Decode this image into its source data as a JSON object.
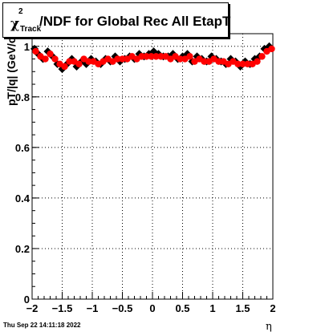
{
  "title": {
    "symbol": "χ",
    "superscript": "2",
    "subscript": "Track",
    "text": "/NDF for Global Rec All EtapT"
  },
  "timestamp": "Thu Sep 22 14:11:18 2022",
  "colors": {
    "series_black": "#000000",
    "series_red": "#ff0000",
    "grid": "#000000",
    "background": "#ffffff"
  },
  "chart_data": {
    "type": "scatter",
    "title": "χ²_Track/NDF for Global Rec All EtapT",
    "xlabel": "η",
    "ylabel": "pT/|q| (GeV/c",
    "xlim": [
      -2,
      2
    ],
    "ylim": [
      0,
      1.05
    ],
    "xticks": [
      "−2",
      "−1.5",
      "−1",
      "−0.5",
      "0",
      "0.5",
      "1",
      "1.5",
      "2"
    ],
    "yticks": [
      "0",
      "0.2",
      "0.4",
      "0.6",
      "0.8",
      "1"
    ],
    "xtick_values": [
      -2,
      -1.5,
      -1,
      -0.5,
      0,
      0.5,
      1,
      1.5,
      2
    ],
    "ytick_values": [
      0,
      0.2,
      0.4,
      0.6,
      0.8,
      1
    ],
    "grid": true,
    "series": [
      {
        "x": [
          -1.96,
          -1.9,
          -1.82,
          -1.74,
          -1.66,
          -1.58,
          -1.5,
          -1.42,
          -1.34,
          -1.26,
          -1.18,
          -1.1,
          -1.02,
          -0.94,
          -0.86,
          -0.78,
          -0.7,
          -0.62,
          -0.54,
          -0.46,
          -0.38,
          -0.3,
          -0.22,
          -0.14,
          -0.06,
          0.02,
          0.1,
          0.18,
          0.26,
          0.34,
          0.42,
          0.5,
          0.58,
          0.66,
          0.74,
          0.82,
          0.9,
          0.98,
          1.06,
          1.14,
          1.22,
          1.3,
          1.38,
          1.46,
          1.54,
          1.62,
          1.7,
          1.78,
          1.86,
          1.94
        ],
        "y": [
          0.99,
          0.97,
          0.95,
          0.98,
          0.96,
          0.93,
          0.91,
          0.93,
          0.95,
          0.92,
          0.94,
          0.93,
          0.95,
          0.94,
          0.93,
          0.95,
          0.94,
          0.96,
          0.94,
          0.95,
          0.96,
          0.95,
          0.97,
          0.96,
          0.97,
          0.98,
          0.97,
          0.96,
          0.96,
          0.97,
          0.95,
          0.96,
          0.97,
          0.94,
          0.96,
          0.95,
          0.94,
          0.96,
          0.95,
          0.94,
          0.93,
          0.95,
          0.94,
          0.92,
          0.94,
          0.93,
          0.95,
          0.96,
          0.99,
          1.0
        ]
      },
      {
        "x": [
          -1.94,
          -1.86,
          -1.78,
          -1.7,
          -1.62,
          -1.54,
          -1.46,
          -1.38,
          -1.3,
          -1.22,
          -1.14,
          -1.06,
          -0.98,
          -0.9,
          -0.82,
          -0.74,
          -0.66,
          -0.58,
          -0.5,
          -0.42,
          -0.34,
          -0.26,
          -0.18,
          -0.1,
          -0.02,
          0.06,
          0.14,
          0.22,
          0.3,
          0.38,
          0.46,
          0.54,
          0.62,
          0.7,
          0.78,
          0.86,
          0.94,
          1.02,
          1.1,
          1.18,
          1.26,
          1.34,
          1.42,
          1.5,
          1.58,
          1.66,
          1.74,
          1.82,
          1.9,
          1.98
        ],
        "y": [
          0.98,
          0.96,
          0.95,
          0.97,
          0.95,
          0.93,
          0.92,
          0.94,
          0.94,
          0.93,
          0.95,
          0.94,
          0.94,
          0.93,
          0.94,
          0.95,
          0.94,
          0.95,
          0.95,
          0.95,
          0.96,
          0.95,
          0.96,
          0.96,
          0.96,
          0.96,
          0.96,
          0.96,
          0.95,
          0.96,
          0.95,
          0.95,
          0.96,
          0.94,
          0.95,
          0.94,
          0.94,
          0.95,
          0.94,
          0.94,
          0.93,
          0.94,
          0.93,
          0.93,
          0.93,
          0.93,
          0.94,
          0.96,
          0.98,
          0.99
        ]
      }
    ]
  }
}
